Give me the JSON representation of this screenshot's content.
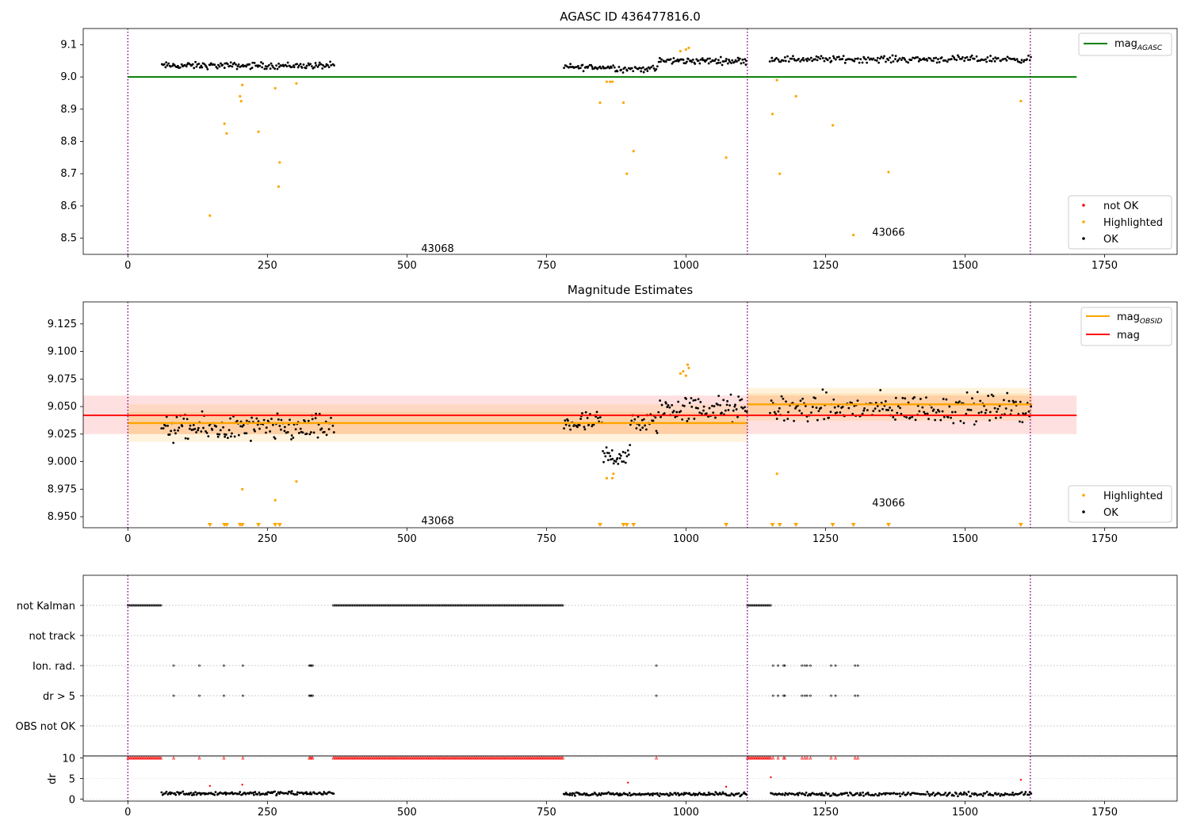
{
  "figure_title": "AGASC ID 436477816.0",
  "chart_data": [
    {
      "type": "scatter",
      "panel": "top",
      "title": "AGASC ID 436477816.0",
      "xlabel": "",
      "ylabel": "",
      "xlim": [
        -80,
        1880
      ],
      "ylim": [
        8.45,
        9.15
      ],
      "x_ticks": [
        0,
        250,
        500,
        750,
        1000,
        1250,
        1500,
        1750
      ],
      "y_ticks": [
        8.5,
        8.6,
        8.7,
        8.8,
        8.9,
        9.0,
        9.1
      ],
      "obsid_boundaries": [
        0,
        1110,
        1617
      ],
      "obsid_labels": [
        {
          "text": "43068",
          "x": 555,
          "y": 8.47
        },
        {
          "text": "43066",
          "x": 1363,
          "y": 8.52
        }
      ],
      "mag_agasc": {
        "value": 9.0,
        "x_range": [
          0,
          1700
        ],
        "color": "#008000"
      },
      "ok_segments": [
        {
          "x_start": 60,
          "x_end": 370,
          "center": 9.035,
          "spread": 0.015,
          "n": 150
        },
        {
          "x_start": 780,
          "x_end": 875,
          "center": 9.03,
          "spread": 0.015,
          "n": 45
        },
        {
          "x_start": 875,
          "x_end": 950,
          "center": 9.025,
          "spread": 0.015,
          "n": 35
        },
        {
          "x_start": 950,
          "x_end": 1110,
          "center": 9.05,
          "spread": 0.015,
          "n": 80
        },
        {
          "x_start": 1150,
          "x_end": 1620,
          "center": 9.055,
          "spread": 0.015,
          "n": 200
        }
      ],
      "highlighted": [
        [
          147,
          8.57
        ],
        [
          173,
          8.855
        ],
        [
          177,
          8.825
        ],
        [
          201,
          8.94
        ],
        [
          203,
          8.925
        ],
        [
          205,
          8.975
        ],
        [
          234,
          8.83
        ],
        [
          264,
          8.965
        ],
        [
          270,
          8.66
        ],
        [
          272,
          8.735
        ],
        [
          302,
          8.98
        ],
        [
          846,
          8.92
        ],
        [
          858,
          8.985
        ],
        [
          864,
          8.985
        ],
        [
          868,
          8.985
        ],
        [
          888,
          8.92
        ],
        [
          894,
          8.7
        ],
        [
          906,
          8.77
        ],
        [
          990,
          9.08
        ],
        [
          1000,
          9.085
        ],
        [
          1005,
          9.09
        ],
        [
          1072,
          8.75
        ],
        [
          1155,
          8.885
        ],
        [
          1163,
          8.99
        ],
        [
          1168,
          8.7
        ],
        [
          1197,
          8.94
        ],
        [
          1263,
          8.85
        ],
        [
          1300,
          8.51
        ],
        [
          1363,
          8.705
        ],
        [
          1600,
          8.925
        ]
      ],
      "legend_lines": [
        {
          "label": "mag",
          "subscript": "AGASC",
          "color": "#008000"
        }
      ],
      "legend_points": [
        {
          "label": "not OK",
          "color": "#ff0000"
        },
        {
          "label": "Highlighted",
          "color": "#ffa500"
        },
        {
          "label": "OK",
          "color": "#000000"
        }
      ]
    },
    {
      "type": "scatter",
      "panel": "middle",
      "title": "Magnitude Estimates",
      "xlabel": "",
      "ylabel": "",
      "xlim": [
        -80,
        1880
      ],
      "ylim": [
        8.94,
        9.145
      ],
      "x_ticks": [
        0,
        250,
        500,
        750,
        1000,
        1250,
        1500,
        1750
      ],
      "y_ticks": [
        8.95,
        8.975,
        9.0,
        9.025,
        9.05,
        9.075,
        9.1,
        9.125
      ],
      "y_tick_labels": [
        "8.950",
        "8.975",
        "9.000",
        "9.025",
        "9.050",
        "9.075",
        "9.100",
        "9.125"
      ],
      "obsid_boundaries": [
        0,
        1110,
        1617
      ],
      "obsid_labels": [
        {
          "text": "43068",
          "x": 555,
          "y": 8.947
        },
        {
          "text": "43066",
          "x": 1363,
          "y": 8.963
        }
      ],
      "mag": {
        "value": 9.042,
        "band": [
          9.025,
          9.06
        ],
        "x_range": [
          -80,
          1700
        ],
        "color": "#ff0000"
      },
      "mag_obsid": [
        {
          "x_range": [
            0,
            1110
          ],
          "value": 9.035,
          "band_inner": [
            9.025,
            9.045
          ],
          "band_outer": [
            9.018,
            9.052
          ]
        },
        {
          "x_range": [
            1110,
            1620
          ],
          "value": 9.052,
          "band_inner": [
            9.042,
            9.062
          ],
          "band_outer": [
            9.037,
            9.067
          ]
        }
      ],
      "ok_segments": [
        {
          "x_start": 60,
          "x_end": 370,
          "center": 9.03,
          "spread": 0.018,
          "n": 150
        },
        {
          "x_start": 780,
          "x_end": 850,
          "center": 9.035,
          "spread": 0.015,
          "n": 35
        },
        {
          "x_start": 850,
          "x_end": 900,
          "center": 9.005,
          "spread": 0.015,
          "n": 30
        },
        {
          "x_start": 900,
          "x_end": 950,
          "center": 9.035,
          "spread": 0.015,
          "n": 25
        },
        {
          "x_start": 950,
          "x_end": 1110,
          "center": 9.048,
          "spread": 0.018,
          "n": 80
        },
        {
          "x_start": 1150,
          "x_end": 1620,
          "center": 9.048,
          "spread": 0.02,
          "n": 200
        }
      ],
      "highlighted": [
        [
          205,
          8.975
        ],
        [
          264,
          8.965
        ],
        [
          302,
          8.982
        ],
        [
          858,
          8.985
        ],
        [
          868,
          8.985
        ],
        [
          870,
          8.989
        ],
        [
          990,
          9.08
        ],
        [
          995,
          9.082
        ],
        [
          1000,
          9.078
        ],
        [
          1003,
          9.088
        ],
        [
          1005,
          9.085
        ],
        [
          1163,
          8.989
        ]
      ],
      "highlighted_below_axis_x": [
        147,
        173,
        177,
        201,
        205,
        234,
        264,
        272,
        846,
        888,
        894,
        906,
        1072,
        1155,
        1168,
        1197,
        1263,
        1300,
        1363,
        1600
      ],
      "legend_lines": [
        {
          "label": "mag",
          "subscript": "OBSID",
          "color": "#ffa500"
        },
        {
          "label": "mag",
          "subscript": "",
          "color": "#ff0000"
        }
      ],
      "legend_points": [
        {
          "label": "Highlighted",
          "color": "#ffa500"
        },
        {
          "label": "OK",
          "color": "#000000"
        }
      ]
    },
    {
      "type": "flags",
      "panel": "flags",
      "title": "",
      "xlim": [
        -80,
        1880
      ],
      "x_ticks": [
        0,
        250,
        500,
        750,
        1000,
        1250,
        1500,
        1750
      ],
      "obsid_boundaries": [
        0,
        1110,
        1617
      ],
      "rows": [
        {
          "label": "not Kalman",
          "ranges": [
            [
              0,
              60
            ],
            [
              368,
              780
            ],
            [
              1110,
              1152
            ]
          ],
          "points": []
        },
        {
          "label": "not track",
          "ranges": [],
          "points": []
        },
        {
          "label": "Ion. rad.",
          "ranges": [],
          "points": [
            82,
            128,
            172,
            206,
            325,
            327,
            329,
            331,
            947,
            1156,
            1165,
            1175,
            1177,
            1208,
            1213,
            1217,
            1223,
            1260,
            1268,
            1303,
            1308
          ]
        },
        {
          "label": "dr > 5",
          "ranges": [],
          "points": [
            82,
            128,
            172,
            206,
            325,
            327,
            329,
            331,
            947,
            1156,
            1165,
            1175,
            1177,
            1208,
            1213,
            1217,
            1223,
            1260,
            1268,
            1303,
            1308
          ]
        },
        {
          "label": "OBS not OK",
          "ranges": [],
          "points": []
        }
      ]
    },
    {
      "type": "scatter",
      "panel": "dr",
      "xlim": [
        -80,
        1880
      ],
      "ylim": [
        -0.5,
        10.5
      ],
      "ylabel": "dr",
      "y_ticks": [
        0,
        5,
        10
      ],
      "x_ticks": [
        0,
        250,
        500,
        750,
        1000,
        1250,
        1500,
        1750
      ],
      "obsid_boundaries": [
        0,
        1110,
        1617
      ],
      "not_ok_ranges_at_10": [
        [
          0,
          60
        ],
        [
          368,
          780
        ],
        [
          1110,
          1152
        ]
      ],
      "not_ok_points_at_10": [
        82,
        128,
        172,
        206,
        325,
        327,
        329,
        331,
        947,
        1156,
        1165,
        1175,
        1177,
        1208,
        1213,
        1217,
        1223,
        1260,
        1268,
        1303,
        1308
      ],
      "not_ok_points": [
        [
          147,
          3.2
        ],
        [
          205,
          3.5
        ],
        [
          896,
          4.0
        ],
        [
          1072,
          3.0
        ],
        [
          1152,
          5.3
        ],
        [
          1600,
          4.7
        ]
      ],
      "ok_segments": [
        {
          "x_start": 60,
          "x_end": 370,
          "center": 1.4,
          "spread": 0.7,
          "n": 150
        },
        {
          "x_start": 780,
          "x_end": 1110,
          "center": 1.2,
          "spread": 0.6,
          "n": 160
        },
        {
          "x_start": 1152,
          "x_end": 1620,
          "center": 1.2,
          "spread": 0.7,
          "n": 200
        }
      ]
    }
  ]
}
